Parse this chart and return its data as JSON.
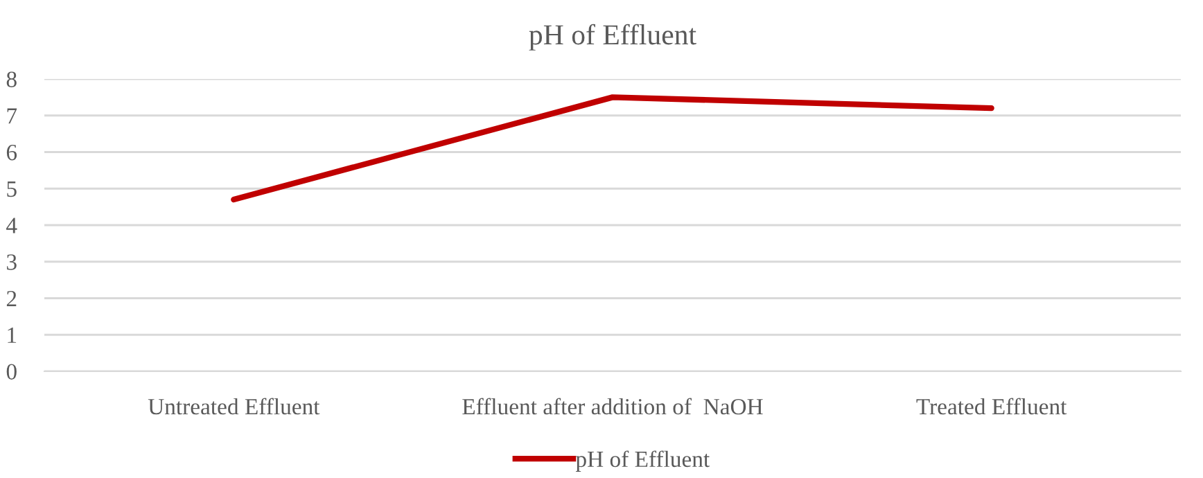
{
  "chart_data": {
    "type": "line",
    "title": "pH of Effluent",
    "categories": [
      "Untreated Effluent",
      "Effluent after addition of  NaOH",
      "Treated Effluent"
    ],
    "series": [
      {
        "name": "pH of Effluent",
        "color": "#c00000",
        "values": [
          4.7,
          7.5,
          7.2
        ]
      }
    ],
    "ylim": [
      0,
      8
    ],
    "yticks": [
      0,
      1,
      2,
      3,
      4,
      5,
      6,
      7,
      8
    ],
    "grid": "y",
    "legend": "bottom",
    "marker": "none",
    "line_style": "solid"
  }
}
